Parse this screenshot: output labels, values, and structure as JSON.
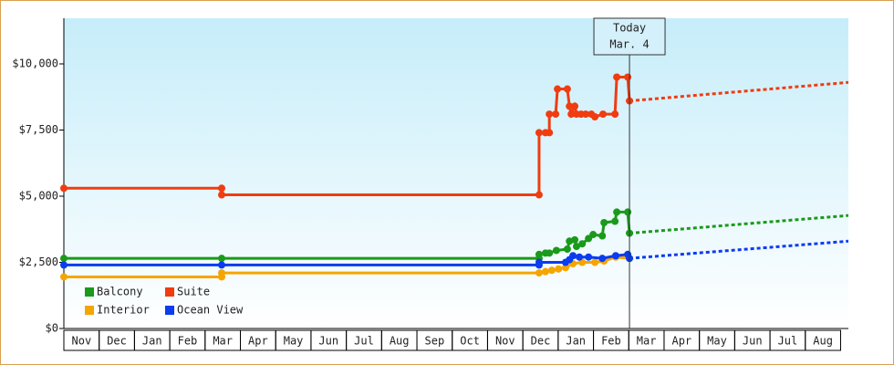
{
  "chart_data": {
    "type": "line",
    "xlim": [
      0,
      22.22
    ],
    "xticks": [
      {
        "value": 0.5,
        "label": "Nov"
      },
      {
        "value": 1.5,
        "label": "Dec"
      },
      {
        "value": 2.5,
        "label": "Jan"
      },
      {
        "value": 3.5,
        "label": "Feb"
      },
      {
        "value": 4.5,
        "label": "Mar"
      },
      {
        "value": 5.5,
        "label": "Apr"
      },
      {
        "value": 6.5,
        "label": "May"
      },
      {
        "value": 7.5,
        "label": "Jun"
      },
      {
        "value": 8.5,
        "label": "Jul"
      },
      {
        "value": 9.5,
        "label": "Aug"
      },
      {
        "value": 10.5,
        "label": "Sep"
      },
      {
        "value": 11.5,
        "label": "Oct"
      },
      {
        "value": 12.5,
        "label": "Nov"
      },
      {
        "value": 13.5,
        "label": "Dec"
      },
      {
        "value": 14.5,
        "label": "Jan"
      },
      {
        "value": 15.5,
        "label": "Feb"
      },
      {
        "value": 16.5,
        "label": "Mar"
      },
      {
        "value": 17.5,
        "label": "Apr"
      },
      {
        "value": 18.5,
        "label": "May"
      },
      {
        "value": 19.5,
        "label": "Jun"
      },
      {
        "value": 20.5,
        "label": "Jul"
      },
      {
        "value": 21.5,
        "label": "Aug"
      }
    ],
    "ylim": [
      0,
      11724
    ],
    "yticks": [
      {
        "value": 0,
        "label": "$0"
      },
      {
        "value": 2500,
        "label": "$2,500"
      },
      {
        "value": 5000,
        "label": "$5,000"
      },
      {
        "value": 7500,
        "label": "$7,500"
      },
      {
        "value": 10000,
        "label": "$10,000"
      }
    ],
    "annotation": {
      "x": 16.02,
      "lines": [
        "Today",
        "Mar. 4"
      ]
    },
    "series": [
      {
        "name": "Balcony",
        "color": "#1a9a1a",
        "x": [
          0,
          4.47,
          13.46,
          13.46,
          13.64,
          13.75,
          13.95,
          14.26,
          14.32,
          14.47,
          14.52,
          14.68,
          14.86,
          14.99,
          15.25,
          15.3,
          15.61,
          15.66,
          15.97,
          16.02
        ],
        "values": [
          2650,
          2650,
          2650,
          2800,
          2850,
          2850,
          2950,
          3000,
          3300,
          3350,
          3100,
          3200,
          3400,
          3550,
          3500,
          4000,
          4050,
          4400,
          4400,
          3600
        ],
        "projection": {
          "x": [
            16.02,
            22.22
          ],
          "values": [
            3600,
            4270
          ]
        }
      },
      {
        "name": "Suite",
        "color": "#f03c10",
        "x": [
          0,
          4.47,
          4.47,
          13.46,
          13.46,
          13.64,
          13.75,
          13.75,
          13.93,
          13.98,
          14.26,
          14.32,
          14.37,
          14.47,
          14.52,
          14.65,
          14.78,
          14.94,
          15.04,
          15.27,
          15.61,
          15.66,
          15.97,
          16.02
        ],
        "values": [
          5300,
          5300,
          5050,
          5050,
          7400,
          7400,
          7400,
          8100,
          8100,
          9050,
          9050,
          8400,
          8100,
          8400,
          8100,
          8100,
          8100,
          8100,
          8000,
          8100,
          8100,
          9500,
          9500,
          8600
        ],
        "projection": {
          "x": [
            16.02,
            22.22
          ],
          "values": [
            8600,
            9300
          ]
        }
      },
      {
        "name": "Interior",
        "color": "#f5a500",
        "x": [
          0,
          4.47,
          4.47,
          13.46,
          13.64,
          13.82,
          14.01,
          14.21,
          14.42,
          14.68,
          15.04,
          15.3,
          15.63,
          16.02
        ],
        "values": [
          1950,
          1950,
          2100,
          2100,
          2150,
          2200,
          2250,
          2300,
          2450,
          2500,
          2500,
          2550,
          2700,
          2650
        ]
      },
      {
        "name": "Ocean View",
        "color": "#0a3cf0",
        "x": [
          0,
          4.47,
          13.46,
          13.46,
          14.21,
          14.32,
          14.42,
          14.6,
          14.86,
          15.25,
          15.63,
          15.97,
          16.02
        ],
        "values": [
          2400,
          2400,
          2400,
          2500,
          2500,
          2600,
          2750,
          2700,
          2700,
          2650,
          2750,
          2800,
          2650
        ],
        "projection": {
          "x": [
            16.02,
            22.22
          ],
          "values": [
            2650,
            3300
          ]
        }
      }
    ]
  }
}
